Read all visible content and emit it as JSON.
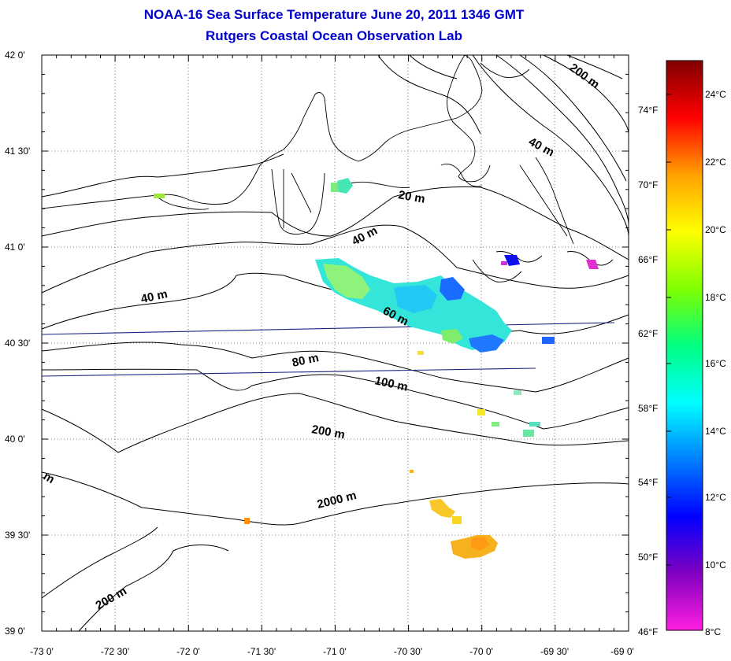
{
  "title": "NOAA-16 Sea Surface Temperature June 20, 2011 1346 GMT",
  "subtitle": "Rutgers Coastal Ocean Observation Lab",
  "map": {
    "lon_ticks": [
      "-73 0'",
      "-72 30'",
      "-72 0'",
      "-71 30'",
      "-71 0'",
      "-70 30'",
      "-70 0'",
      "-69 30'",
      "-69 0'"
    ],
    "lat_ticks": [
      "42 0'",
      "41 30'",
      "41 0'",
      "40 30'",
      "40 0'",
      "39 30'",
      "39 0'"
    ],
    "lon_range": [
      -73.0,
      -69.0
    ],
    "lat_range": [
      39.0,
      42.0
    ],
    "grid": "dotted"
  },
  "contours": [
    "200 m",
    "40 m",
    "20 m",
    "40 m",
    "40 m",
    "60 m",
    "80 m",
    "100 m",
    "200 m",
    "2000 m",
    "200 m",
    "m"
  ],
  "colorbar": {
    "celsius": [
      "24°C",
      "22°C",
      "20°C",
      "18°C",
      "16°C",
      "14°C",
      "12°C",
      "10°C",
      "8°C"
    ],
    "fahrenheit": [
      "74°F",
      "70°F",
      "66°F",
      "62°F",
      "58°F",
      "54°F",
      "50°F",
      "46°F"
    ],
    "stops": [
      "#ff1fe0",
      "#8000c0",
      "#0000ff",
      "#0080ff",
      "#00ffff",
      "#00ff80",
      "#80ff00",
      "#ffff00",
      "#ffa000",
      "#ff0000",
      "#800000"
    ]
  }
}
